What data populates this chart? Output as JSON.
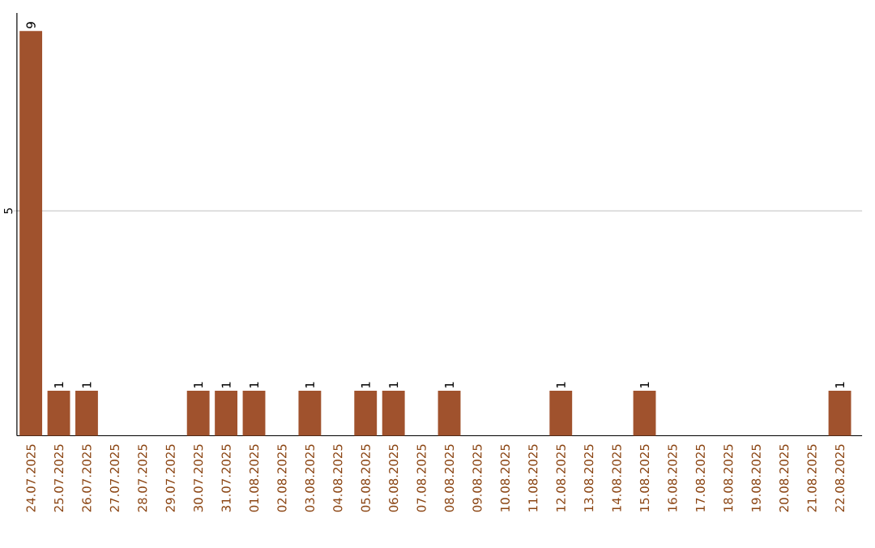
{
  "chart_data": {
    "type": "bar",
    "categories": [
      "24.07.2025",
      "25.07.2025",
      "26.07.2025",
      "27.07.2025",
      "28.07.2025",
      "29.07.2025",
      "30.07.2025",
      "31.07.2025",
      "01.08.2025",
      "02.08.2025",
      "03.08.2025",
      "04.08.2025",
      "05.08.2025",
      "06.08.2025",
      "07.08.2025",
      "08.08.2025",
      "09.08.2025",
      "10.08.2025",
      "11.08.2025",
      "12.08.2025",
      "13.08.2025",
      "14.08.2025",
      "15.08.2025",
      "16.08.2025",
      "17.08.2025",
      "18.08.2025",
      "19.08.2025",
      "20.08.2025",
      "21.08.2025",
      "22.08.2025"
    ],
    "values": [
      9,
      1,
      1,
      0,
      0,
      0,
      1,
      1,
      1,
      0,
      1,
      0,
      1,
      1,
      0,
      1,
      0,
      0,
      0,
      1,
      0,
      0,
      1,
      0,
      0,
      0,
      0,
      0,
      0,
      1
    ],
    "value_labels": [
      "9",
      "1",
      "1",
      null,
      null,
      null,
      "1",
      "1",
      "1",
      null,
      "1",
      null,
      "1",
      "1",
      null,
      "1",
      null,
      null,
      null,
      "1",
      null,
      null,
      "1",
      null,
      null,
      null,
      null,
      null,
      null,
      "1"
    ],
    "color": "#a0522d",
    "ylim": [
      0,
      9.4
    ],
    "yticks": [
      5
    ],
    "grid": "y"
  }
}
